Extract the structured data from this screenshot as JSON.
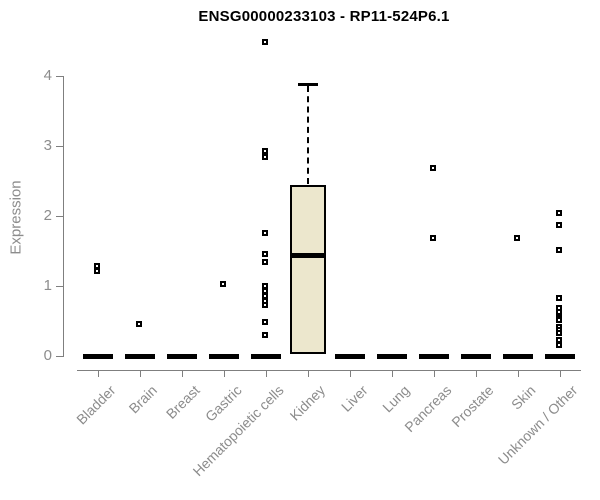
{
  "chart_data": {
    "type": "boxplot",
    "title": "ENSG00000233103 - RP11-524P6.1",
    "xlabel": "",
    "ylabel": "Expression",
    "ylim": [
      0,
      4
    ],
    "yticks": [
      0,
      1,
      2,
      3,
      4
    ],
    "grid": false,
    "legend": "none",
    "categories": [
      "Bladder",
      "Brain",
      "Breast",
      "Gastric",
      "Hematopoietic cells",
      "Kidney",
      "Liver",
      "Lung",
      "Pancreas",
      "Prostate",
      "Skin",
      "Unknown / Other"
    ],
    "boxes": [
      {
        "category": "Bladder",
        "q1": 0,
        "median": 0,
        "q3": 0,
        "whisker_low": 0,
        "whisker_high": 0,
        "outliers": [
          1.29,
          1.22
        ]
      },
      {
        "category": "Brain",
        "q1": 0,
        "median": 0,
        "q3": 0,
        "whisker_low": 0,
        "whisker_high": 0,
        "outliers": [
          0.46
        ]
      },
      {
        "category": "Breast",
        "q1": 0,
        "median": 0,
        "q3": 0,
        "whisker_low": 0,
        "whisker_high": 0,
        "outliers": []
      },
      {
        "category": "Gastric",
        "q1": 0,
        "median": 0,
        "q3": 0,
        "whisker_low": 0,
        "whisker_high": 0,
        "outliers": [
          1.03
        ]
      },
      {
        "category": "Hematopoietic cells",
        "q1": 0,
        "median": 0,
        "q3": 0,
        "whisker_low": 0,
        "whisker_high": 0,
        "outliers": [
          4.49,
          2.93,
          2.84,
          1.76,
          1.46,
          1.34,
          1.0,
          0.93,
          0.86,
          0.79,
          0.73,
          0.49,
          0.3
        ]
      },
      {
        "category": "Kidney",
        "q1": 0.03,
        "median": 1.43,
        "q3": 2.45,
        "whisker_low": 0.03,
        "whisker_high": 3.88,
        "outliers": []
      },
      {
        "category": "Liver",
        "q1": 0,
        "median": 0,
        "q3": 0,
        "whisker_low": 0,
        "whisker_high": 0,
        "outliers": []
      },
      {
        "category": "Lung",
        "q1": 0,
        "median": 0,
        "q3": 0,
        "whisker_low": 0,
        "whisker_high": 0,
        "outliers": []
      },
      {
        "category": "Pancreas",
        "q1": 0,
        "median": 0,
        "q3": 0,
        "whisker_low": 0,
        "whisker_high": 0,
        "outliers": [
          2.68,
          1.68
        ]
      },
      {
        "category": "Prostate",
        "q1": 0,
        "median": 0,
        "q3": 0,
        "whisker_low": 0,
        "whisker_high": 0,
        "outliers": []
      },
      {
        "category": "Skin",
        "q1": 0,
        "median": 0,
        "q3": 0,
        "whisker_low": 0,
        "whisker_high": 0,
        "outliers": [
          1.68
        ]
      },
      {
        "category": "Unknown / Other",
        "q1": 0,
        "median": 0,
        "q3": 0,
        "whisker_low": 0,
        "whisker_high": 0,
        "outliers": [
          2.04,
          1.87,
          1.51,
          0.83,
          0.69,
          0.63,
          0.57,
          0.54,
          0.51,
          0.41,
          0.37,
          0.33,
          0.23,
          0.16
        ]
      }
    ],
    "colors": {
      "box_fill": "#ece7cd",
      "box_border": "#000000",
      "median": "#000000",
      "outlier": "#000000",
      "axis": "#7f7f7f",
      "tick_text": "#8c8c8c",
      "title_text": "#000000"
    }
  }
}
